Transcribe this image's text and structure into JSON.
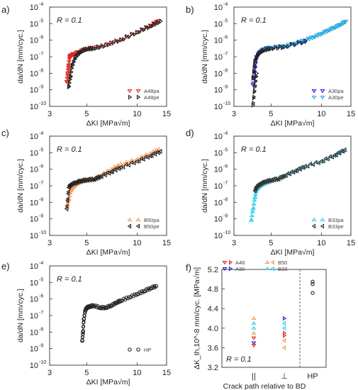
{
  "figure": {
    "title": ""
  },
  "colors": {
    "A48pa": "#e0201b",
    "A48pe": "#222222",
    "A30pa": "#1d1dd6",
    "A30pe": "#2aa7e0",
    "B50pa": "#f59b57",
    "B50pe": "#222222",
    "B33pa": "#30d0e8",
    "B33pe": "#333333",
    "HP": "#222222",
    "f_A48": "#e0201b",
    "f_A30": "#1d1dd6",
    "f_B50": "#f59b57",
    "f_B33": "#30d0e8"
  },
  "chart_data": [
    {
      "panel": "a)",
      "type": "scatter",
      "annotation": "R = 0.1",
      "xlabel": "ΔKI [MPa√m]",
      "ylabel": "da/dN [mm/cyc.]",
      "xscale": "log",
      "yscale": "log",
      "xlim": [
        3,
        15
      ],
      "ylim": [
        1e-10,
        0.0001
      ],
      "xticks": [
        "3",
        "5",
        "10",
        "15"
      ],
      "yticks": [
        {
          "base": "10",
          "exp": "-10"
        },
        {
          "base": "10",
          "exp": "-9"
        },
        {
          "base": "10",
          "exp": "-8"
        },
        {
          "base": "10",
          "exp": "-7"
        },
        {
          "base": "10",
          "exp": "-6"
        },
        {
          "base": "10",
          "exp": "-5"
        },
        {
          "base": "10",
          "exp": "-4"
        }
      ],
      "legend_position": "bottom-right",
      "series": [
        {
          "name": "A48pa",
          "marker": "triangle-down",
          "color_key": "A48pa",
          "x": [
            3.8,
            3.85,
            3.9,
            3.95,
            4.0,
            4.2,
            4.5,
            5.0,
            6.0,
            8.0,
            10.0,
            12.0,
            13.5
          ],
          "y": [
            3e-09,
            1e-08,
            3e-08,
            1e-07,
            1.2e-07,
            1.5e-07,
            2e-07,
            3e-07,
            4e-07,
            1e-06,
            3e-06,
            8e-06,
            1.5e-05
          ]
        },
        {
          "name": "A48pe",
          "marker": "triangle-right",
          "color_key": "A48pe",
          "x": [
            3.9,
            4.0,
            4.1,
            4.3,
            4.6,
            5.0,
            5.5,
            6.5,
            8.0,
            10.0,
            12.0,
            13.8
          ],
          "y": [
            1.5e-09,
            6e-09,
            3e-08,
            1e-07,
            2e-07,
            3e-07,
            3.2e-07,
            5e-07,
            1.1e-06,
            3e-06,
            7e-06,
            1.4e-05
          ]
        }
      ]
    },
    {
      "panel": "b)",
      "type": "scatter",
      "annotation": "R = 0.1",
      "xlabel": "ΔKI [MPa√m]",
      "ylabel": "da/dN [mm/cyc.]",
      "xscale": "log",
      "yscale": "log",
      "xlim": [
        3,
        15
      ],
      "ylim": [
        1e-10,
        0.0001
      ],
      "xticks": [
        "3",
        "5",
        "10",
        "15"
      ],
      "yticks": [
        {
          "base": "10",
          "exp": "-10"
        },
        {
          "base": "10",
          "exp": "-9"
        },
        {
          "base": "10",
          "exp": "-8"
        },
        {
          "base": "10",
          "exp": "-7"
        },
        {
          "base": "10",
          "exp": "-6"
        },
        {
          "base": "10",
          "exp": "-5"
        },
        {
          "base": "10",
          "exp": "-4"
        }
      ],
      "legend_position": "bottom-right",
      "series": [
        {
          "name": "A30pa",
          "marker": "triangle-down",
          "color_key": "A30pa",
          "x": [
            3.9,
            4.0,
            4.1,
            4.3,
            4.6,
            5.0,
            6.0,
            8.0
          ],
          "y": [
            2e-09,
            2e-08,
            1e-07,
            2e-07,
            3e-07,
            3.5e-07,
            4e-07,
            8e-07
          ]
        },
        {
          "name": "A30pe",
          "marker": "triangle-down",
          "color_key": "A30pe",
          "x": [
            4.5,
            5.0,
            6.0,
            7.0,
            8.0,
            9.0,
            10.0,
            11.0,
            12.0,
            13.0,
            14.0
          ],
          "y": [
            3e-07,
            3.5e-07,
            4.5e-07,
            6.5e-07,
            1e-06,
            1.6e-06,
            2.5e-06,
            4e-06,
            6e-06,
            9e-06,
            1.4e-05
          ]
        },
        {
          "name": "A30pa",
          "marker": "triangle-right",
          "color_key": "A48pe",
          "x": [
            3.9,
            4.0,
            4.2,
            4.5,
            5.0,
            6.0,
            8.0
          ],
          "y": [
            5e-09,
            5e-08,
            1.5e-07,
            2.5e-07,
            3.2e-07,
            4e-07,
            9e-07
          ]
        },
        {
          "name": "A30pe",
          "marker": "triangle-right",
          "color_key": "HP",
          "x": [
            3.9,
            4.0,
            4.1
          ],
          "y": [
            1.2e-10,
            1.5e-09,
            1e-08
          ]
        }
      ]
    },
    {
      "panel": "c)",
      "type": "scatter",
      "annotation": "R = 0.1",
      "xlabel": "ΔKI [MPa√m]",
      "ylabel": "da/dN [mm/cyc.]",
      "xscale": "log",
      "yscale": "log",
      "xlim": [
        3,
        15
      ],
      "ylim": [
        1e-10,
        0.0001
      ],
      "xticks": [
        "3",
        "5",
        "10",
        "15"
      ],
      "yticks": [
        {
          "base": "10",
          "exp": "-10"
        },
        {
          "base": "10",
          "exp": "-9"
        },
        {
          "base": "10",
          "exp": "-8"
        },
        {
          "base": "10",
          "exp": "-7"
        },
        {
          "base": "10",
          "exp": "-6"
        },
        {
          "base": "10",
          "exp": "-5"
        },
        {
          "base": "10",
          "exp": "-4"
        }
      ],
      "legend_position": "bottom-right",
      "series": [
        {
          "name": "B50pa",
          "marker": "triangle-up",
          "color_key": "B50pa",
          "x": [
            3.8,
            3.9,
            4.0,
            4.1,
            4.3,
            4.6,
            5.0,
            5.5,
            6.0,
            7.0,
            8.0,
            10.0,
            12.0,
            13.5
          ],
          "y": [
            5e-09,
            1.5e-08,
            5e-08,
            8e-08,
            1.2e-07,
            1.8e-07,
            2.2e-07,
            2.5e-07,
            4e-07,
            1e-06,
            2e-06,
            4e-06,
            9e-06,
            1.6e-05
          ]
        },
        {
          "name": "B50pe",
          "marker": "triangle-left",
          "color_key": "B50pe",
          "x": [
            3.8,
            3.9,
            4.0,
            4.3,
            4.6,
            5.0,
            5.5,
            6.0,
            7.0,
            8.0,
            10.0,
            12.0,
            13.8
          ],
          "y": [
            4e-09,
            8e-08,
            1.2e-07,
            1.6e-07,
            2e-07,
            2.3e-07,
            2.5e-07,
            3.5e-07,
            7e-07,
            1.3e-06,
            3e-06,
            6.5e-06,
            1.2e-05
          ]
        }
      ]
    },
    {
      "panel": "d)",
      "type": "scatter",
      "annotation": "R = 0.1",
      "xlabel": "ΔKI [MPa√m]",
      "ylabel": "da/dN [mm/cyc.]",
      "xscale": "log",
      "yscale": "log",
      "xlim": [
        3,
        15
      ],
      "ylim": [
        1e-10,
        0.0001
      ],
      "xticks": [
        "3",
        "5",
        "10",
        "15"
      ],
      "yticks": [
        {
          "base": "10",
          "exp": "-10"
        },
        {
          "base": "10",
          "exp": "-9"
        },
        {
          "base": "10",
          "exp": "-8"
        },
        {
          "base": "10",
          "exp": "-7"
        },
        {
          "base": "10",
          "exp": "-6"
        },
        {
          "base": "10",
          "exp": "-5"
        },
        {
          "base": "10",
          "exp": "-4"
        }
      ],
      "legend_position": "bottom-right",
      "series": [
        {
          "name": "B33pa",
          "marker": "triangle-up",
          "color_key": "B33pa",
          "x": [
            3.8,
            3.9,
            4.0,
            4.1,
            4.3,
            4.6,
            5.0,
            6.0,
            7.0,
            8.0,
            10.0,
            12.0,
            13.8
          ],
          "y": [
            8e-10,
            4e-09,
            2e-08,
            6e-08,
            1e-07,
            1.5e-07,
            2e-07,
            4e-07,
            8e-07,
            1.5e-06,
            3e-06,
            7e-06,
            1.4e-05
          ]
        },
        {
          "name": "B33pe",
          "marker": "triangle-left",
          "color_key": "B33pe",
          "x": [
            4.0,
            4.1,
            4.3,
            4.6,
            5.0,
            5.5,
            6.0,
            7.0,
            8.0,
            10.0,
            12.0,
            13.8
          ],
          "y": [
            5e-08,
            9e-08,
            1.3e-07,
            1.8e-07,
            2.2e-07,
            2.6e-07,
            4e-07,
            8e-07,
            1.5e-06,
            3e-06,
            7e-06,
            1.5e-05
          ]
        }
      ]
    },
    {
      "panel": "e)",
      "type": "scatter",
      "annotation": "R = 0.1",
      "xlabel": "ΔKI [MPa√m]",
      "ylabel": "da/dN [mm/cyc.]",
      "xscale": "log",
      "yscale": "log",
      "xlim": [
        3,
        15
      ],
      "ylim": [
        1e-10,
        0.0001
      ],
      "xticks": [
        "3",
        "5",
        "10",
        "15"
      ],
      "yticks": [
        {
          "base": "10",
          "exp": "-10"
        },
        {
          "base": "10",
          "exp": "-9"
        },
        {
          "base": "10",
          "exp": "-8"
        },
        {
          "base": "10",
          "exp": "-7"
        },
        {
          "base": "10",
          "exp": "-6"
        },
        {
          "base": "10",
          "exp": "-5"
        },
        {
          "base": "10",
          "exp": "-4"
        }
      ],
      "legend_position": "bottom-right",
      "series": [
        {
          "name": "HP",
          "marker": "circle",
          "color_key": "HP",
          "x": [
            4.7,
            4.75,
            4.8,
            4.9,
            5.0,
            5.2,
            5.5,
            6.0,
            6.5,
            7.0,
            7.5,
            8.0,
            9.0,
            10.0,
            11.0,
            12.0,
            13.0
          ],
          "y": [
            3e-09,
            1e-08,
            6e-08,
            2e-07,
            3e-07,
            3.5e-07,
            4e-07,
            3e-07,
            3e-07,
            4e-07,
            6e-07,
            8e-07,
            1.3e-06,
            2e-06,
            3e-06,
            4.5e-06,
            6e-06
          ]
        }
      ]
    },
    {
      "panel": "f)",
      "type": "scatter",
      "annotation": "R = 0.1",
      "ylabel": "ΔK_th,10^-8 mm/cyc. [MPa√m]",
      "xlabel": "Crack path relative to BD",
      "ylim": [
        3.2,
        5.2
      ],
      "yticks": [
        "3.2",
        "3.6",
        "4.0",
        "4.4",
        "4.8",
        "5.2"
      ],
      "categories": [
        "||",
        "⊥",
        "HP"
      ],
      "legend_position": "top",
      "legend": [
        {
          "label": "A48",
          "colors": [
            "#e0201b",
            "#e0201b"
          ],
          "markers": [
            "triangle-down",
            "triangle-right"
          ]
        },
        {
          "label": "A30",
          "colors": [
            "#1d1dd6",
            "#1d1dd6"
          ],
          "markers": [
            "triangle-down",
            "triangle-right"
          ]
        },
        {
          "label": "B50",
          "colors": [
            "#f59b57",
            "#f59b57"
          ],
          "markers": [
            "triangle-up",
            "triangle-left"
          ]
        },
        {
          "label": "B33",
          "colors": [
            "#30d0e8",
            "#30d0e8"
          ],
          "markers": [
            "triangle-up",
            "triangle-left"
          ]
        }
      ],
      "series": [
        {
          "name": "A48",
          "color_key": "f_A48",
          "category": "||",
          "values": [
            3.65,
            3.8
          ]
        },
        {
          "name": "A30",
          "color_key": "f_A30",
          "category": "||",
          "values": [
            3.7
          ]
        },
        {
          "name": "B50",
          "color_key": "f_B50",
          "category": "||",
          "values": [
            3.9,
            4.2
          ]
        },
        {
          "name": "B33",
          "color_key": "f_B33",
          "category": "||",
          "values": [
            4.0,
            4.1
          ]
        },
        {
          "name": "A48",
          "color_key": "f_A48",
          "category": "⊥",
          "values": [
            3.85,
            3.9
          ]
        },
        {
          "name": "A30",
          "color_key": "f_A30",
          "category": "⊥",
          "values": [
            4.2
          ]
        },
        {
          "name": "B50",
          "color_key": "f_B50",
          "category": "⊥",
          "values": [
            3.6,
            3.75
          ]
        },
        {
          "name": "B33",
          "color_key": "f_B33",
          "category": "⊥",
          "values": [
            4.0,
            4.1
          ]
        },
        {
          "name": "HP",
          "color_key": "HP",
          "category": "HP",
          "values": [
            4.95,
            4.9,
            4.72
          ]
        }
      ]
    }
  ]
}
